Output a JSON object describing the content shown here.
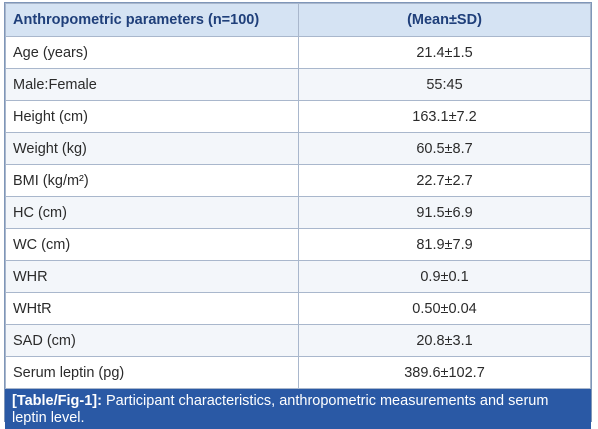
{
  "header": {
    "col1": "Anthropometric parameters (n=100)",
    "col2": "(Mean±SD)"
  },
  "rows": [
    {
      "param": "Age (years)",
      "value": "21.4±1.5"
    },
    {
      "param": "Male:Female",
      "value": "55:45"
    },
    {
      "param": "Height (cm)",
      "value": "163.1±7.2"
    },
    {
      "param": "Weight (kg)",
      "value": "60.5±8.7"
    },
    {
      "param": "BMI (kg/m²)",
      "value": "22.7±2.7"
    },
    {
      "param": "HC (cm)",
      "value": "91.5±6.9"
    },
    {
      "param": "WC (cm)",
      "value": "81.9±7.9"
    },
    {
      "param": "WHR",
      "value": "0.9±0.1"
    },
    {
      "param": "WHtR",
      "value": "0.50±0.04"
    },
    {
      "param": "SAD (cm)",
      "value": "20.8±3.1"
    },
    {
      "param": "Serum leptin (pg)",
      "value": "389.6±102.7"
    }
  ],
  "caption": {
    "label": "[Table/Fig-1]:",
    "text": " Participant characteristics, anthropometric measurements and serum leptin level."
  },
  "colors": {
    "header_bg": "#d5e3f3",
    "header_text": "#1f3f7a",
    "caption_bg": "#2a59a5"
  }
}
